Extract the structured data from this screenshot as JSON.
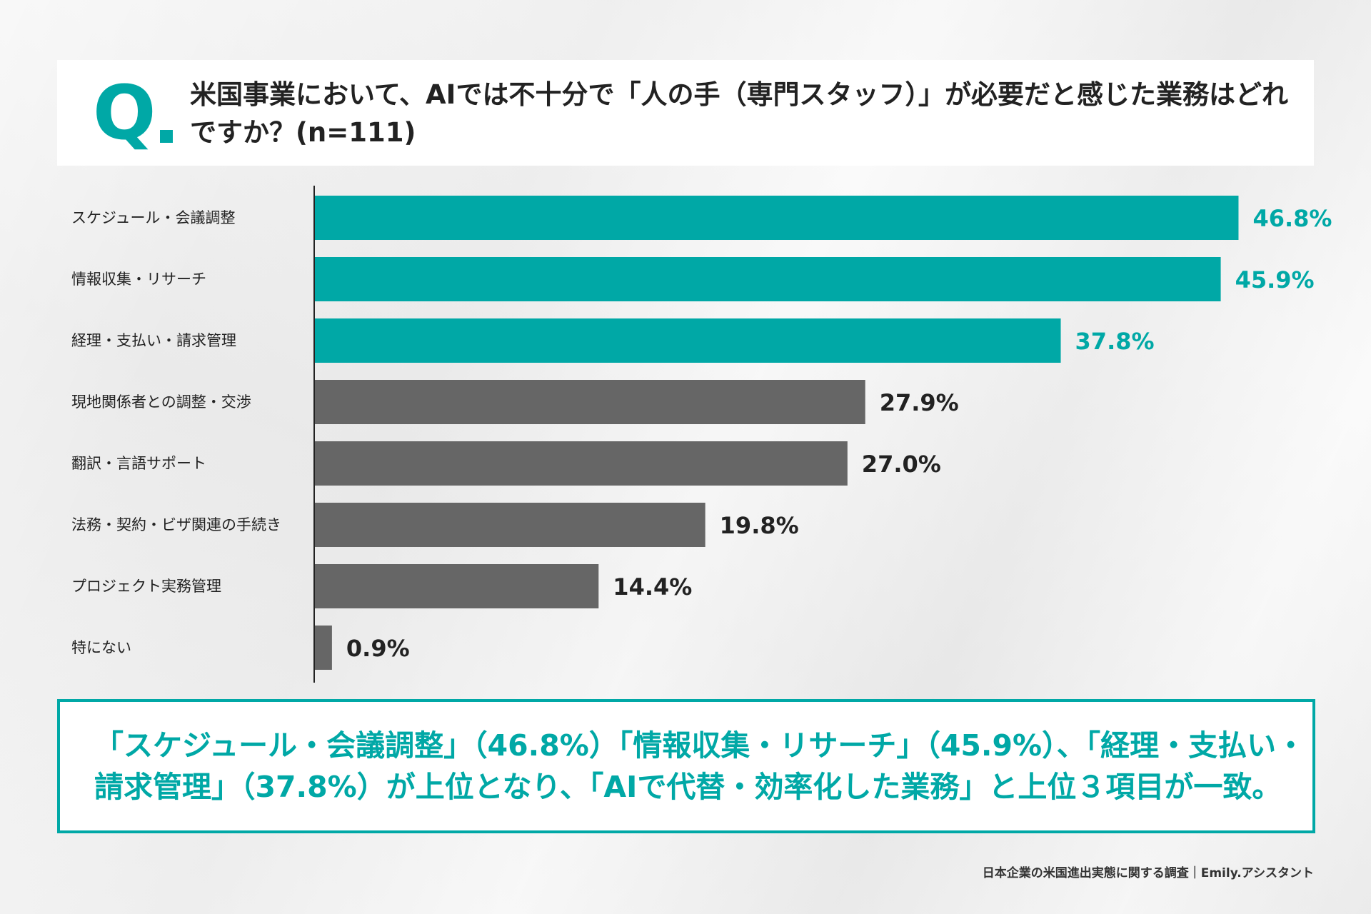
{
  "question": {
    "mark": "Q",
    "text": "米国事業において、AIでは不十分で「人の手（専門スタッフ）」が必要だと感じた業務はどれですか？(n=111)"
  },
  "colors": {
    "accent": "#00a8a6",
    "gray": "#666666",
    "label_text": "#222222",
    "value_dark": "#222222"
  },
  "chart_data": {
    "type": "bar",
    "orientation": "horizontal",
    "categories": [
      "スケジュール・会議調整",
      "情報収集・リサーチ",
      "経理・支払い・請求管理",
      "現地関係者との調整・交渉",
      "翻訳・言語サポート",
      "法務・契約・ビザ関連の手続き",
      "プロジェクト実務管理",
      "特にない"
    ],
    "values": [
      46.8,
      45.9,
      37.8,
      27.9,
      27.0,
      19.8,
      14.4,
      0.9
    ],
    "value_labels": [
      "46.8%",
      "45.9%",
      "37.8%",
      "27.9%",
      "27.0%",
      "19.8%",
      "14.4%",
      "0.9%"
    ],
    "highlighted": [
      true,
      true,
      true,
      false,
      false,
      false,
      false,
      false
    ],
    "xlim": [
      0,
      47
    ],
    "unit": "%",
    "grid": false
  },
  "summary": {
    "text": "「スケジュール・会議調整」（46.8%）「情報収集・リサーチ」（45.9%）、「経理・支払い・請求管理」（37.8%）が上位となり、「AIで代替・効率化した業務」と上位３項目が一致。"
  },
  "footer": {
    "text": "日本企業の米国進出実態に関する調査｜Emily.アシスタント"
  }
}
